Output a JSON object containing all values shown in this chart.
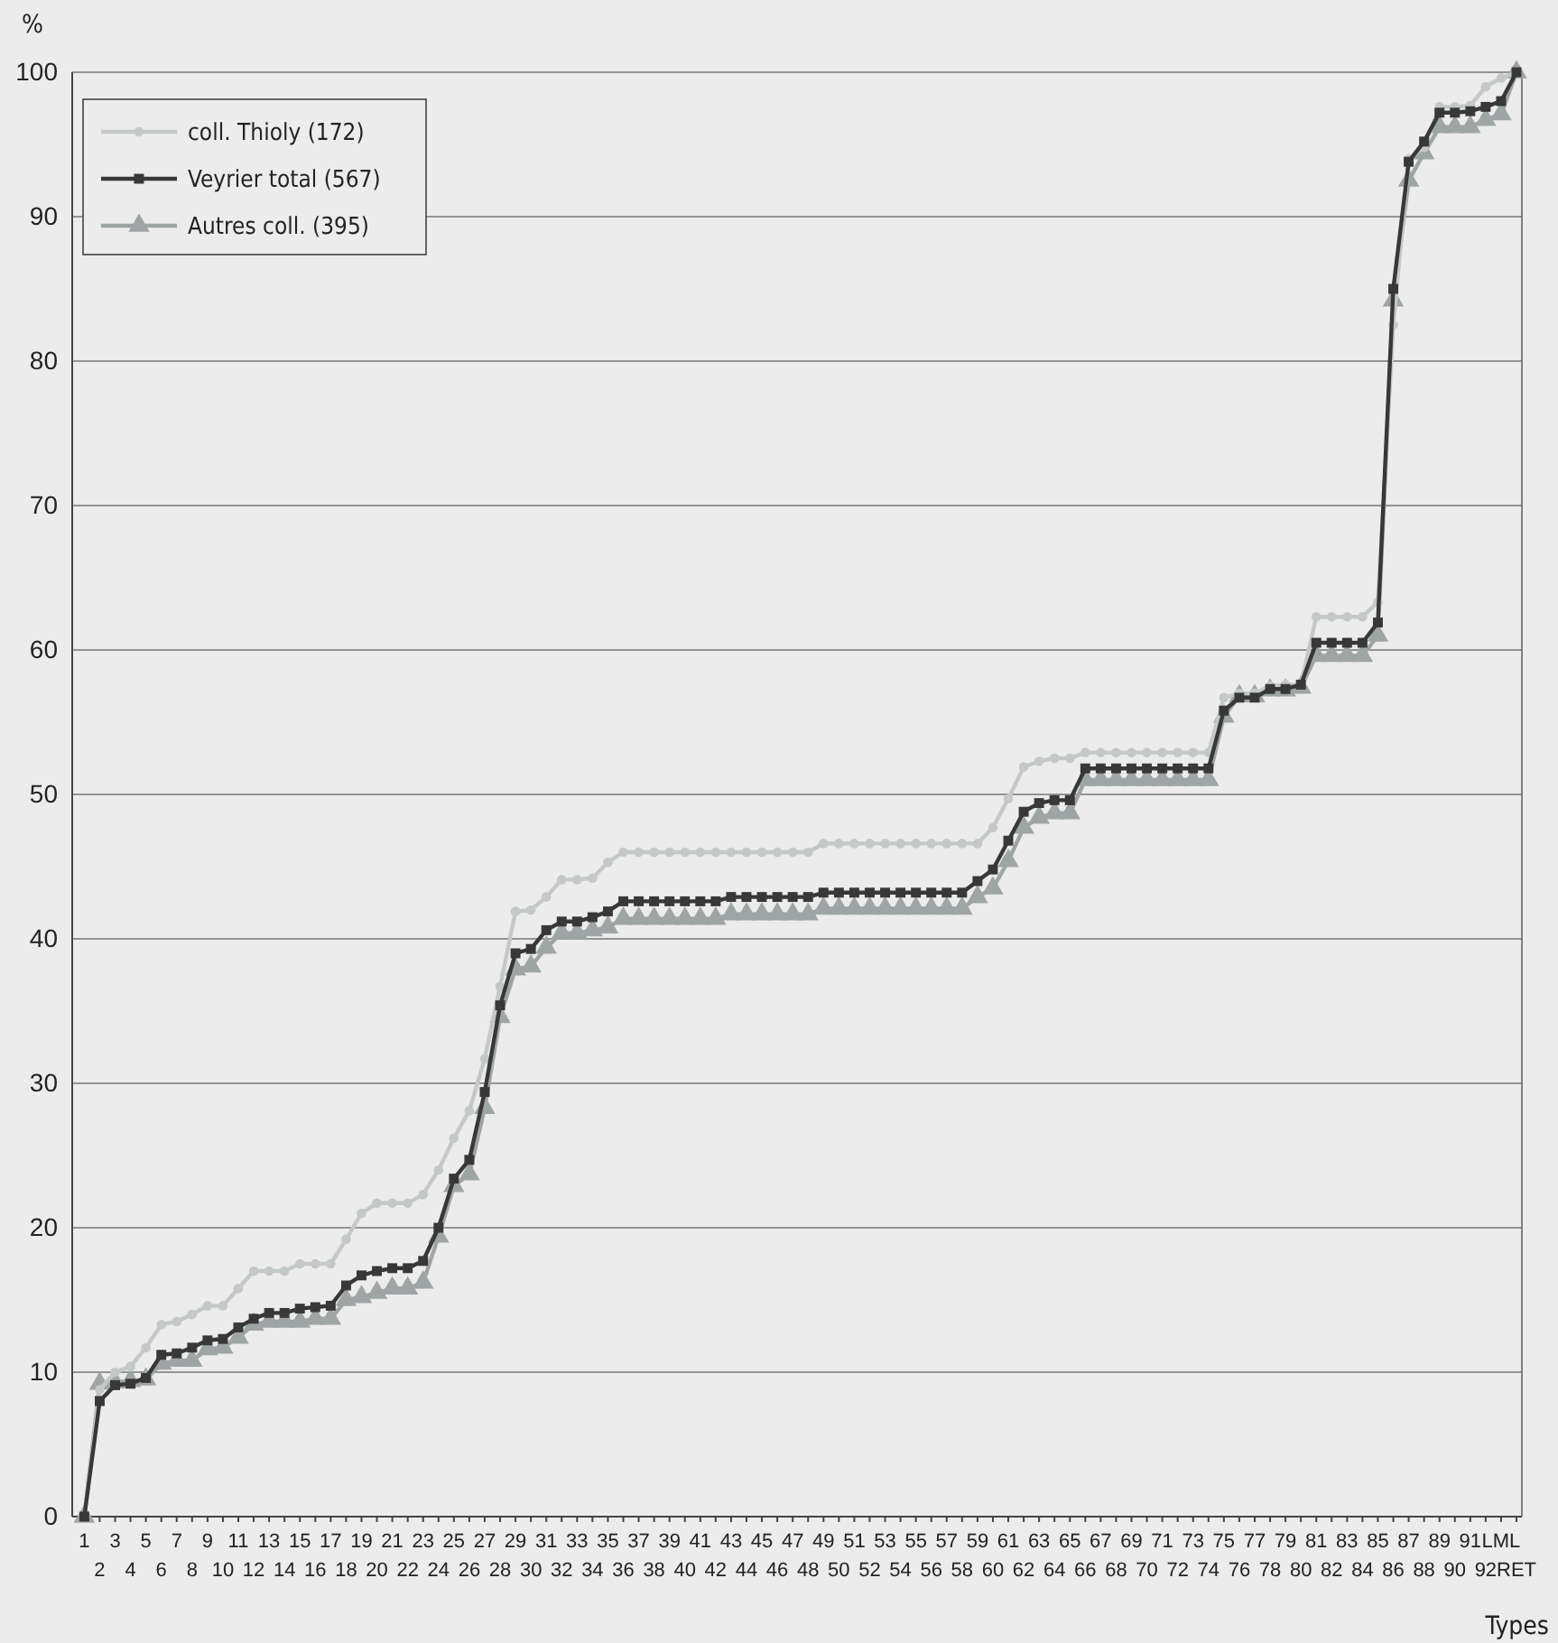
{
  "chart_data": {
    "type": "line",
    "categories": [
      "1",
      "2",
      "3",
      "4",
      "5",
      "6",
      "7",
      "8",
      "9",
      "10",
      "11",
      "12",
      "13",
      "14",
      "15",
      "16",
      "17",
      "18",
      "19",
      "20",
      "21",
      "22",
      "23",
      "24",
      "25",
      "26",
      "27",
      "28",
      "29",
      "30",
      "31",
      "32",
      "33",
      "34",
      "35",
      "36",
      "37",
      "38",
      "39",
      "40",
      "41",
      "42",
      "43",
      "44",
      "45",
      "46",
      "47",
      "48",
      "49",
      "50",
      "51",
      "52",
      "53",
      "54",
      "55",
      "56",
      "57",
      "58",
      "59",
      "60",
      "61",
      "62",
      "63",
      "64",
      "65",
      "66",
      "67",
      "68",
      "69",
      "70",
      "71",
      "72",
      "73",
      "74",
      "75",
      "76",
      "77",
      "78",
      "79",
      "80",
      "81",
      "82",
      "83",
      "84",
      "85",
      "86",
      "87",
      "88",
      "89",
      "90",
      "91",
      "92",
      "LML",
      "RET"
    ],
    "xlabel": "Types",
    "ylabel": "%",
    "ylim": [
      0,
      100
    ],
    "yticks": [
      0,
      10,
      20,
      30,
      40,
      50,
      60,
      70,
      80,
      90,
      100
    ],
    "grid": "y",
    "legend": "top left",
    "line_style": "solid",
    "series": [
      {
        "name": "coll. Thioly (172)",
        "color": "#c4c8c8",
        "marker": "circle",
        "values": [
          0,
          8.8,
          10.0,
          10.4,
          11.7,
          13.3,
          13.5,
          14.0,
          14.6,
          14.6,
          15.8,
          17.0,
          17.0,
          17.0,
          17.5,
          17.5,
          17.5,
          19.2,
          21.0,
          21.7,
          21.7,
          21.7,
          22.3,
          24.0,
          26.2,
          28.1,
          31.7,
          36.7,
          41.9,
          42.0,
          42.9,
          44.1,
          44.1,
          44.2,
          45.3,
          46.0,
          46.0,
          46.0,
          46.0,
          46.0,
          46.0,
          46.0,
          46.0,
          46.0,
          46.0,
          46.0,
          46.0,
          46.0,
          46.6,
          46.6,
          46.6,
          46.6,
          46.6,
          46.6,
          46.6,
          46.6,
          46.6,
          46.6,
          46.6,
          47.7,
          49.7,
          51.9,
          52.3,
          52.5,
          52.5,
          52.9,
          52.9,
          52.9,
          52.9,
          52.9,
          52.9,
          52.9,
          52.9,
          52.9,
          56.7,
          57.0,
          57.0,
          57.5,
          57.6,
          57.6,
          62.3,
          62.3,
          62.3,
          62.3,
          63.3,
          82.5,
          94.0,
          94.8,
          97.6,
          97.6,
          97.7,
          99.0,
          99.6,
          100
        ]
      },
      {
        "name": "Veyrier total (567)",
        "color": "#383838",
        "marker": "square",
        "values": [
          0,
          8.0,
          9.1,
          9.2,
          9.6,
          11.2,
          11.3,
          11.7,
          12.2,
          12.3,
          13.1,
          13.7,
          14.1,
          14.1,
          14.4,
          14.5,
          14.6,
          16.0,
          16.7,
          17.0,
          17.2,
          17.2,
          17.7,
          20.0,
          23.4,
          24.7,
          29.4,
          35.4,
          39.0,
          39.3,
          40.6,
          41.2,
          41.2,
          41.5,
          41.9,
          42.6,
          42.6,
          42.6,
          42.6,
          42.6,
          42.6,
          42.6,
          42.9,
          42.9,
          42.9,
          42.9,
          42.9,
          42.9,
          43.2,
          43.2,
          43.2,
          43.2,
          43.2,
          43.2,
          43.2,
          43.2,
          43.2,
          43.2,
          44.0,
          44.8,
          46.8,
          48.8,
          49.4,
          49.6,
          49.6,
          51.8,
          51.8,
          51.8,
          51.8,
          51.8,
          51.8,
          51.8,
          51.8,
          51.8,
          55.8,
          56.7,
          56.7,
          57.3,
          57.3,
          57.6,
          60.5,
          60.5,
          60.5,
          60.5,
          61.9,
          85.0,
          93.8,
          95.2,
          97.2,
          97.2,
          97.3,
          97.6,
          98.0,
          100
        ]
      },
      {
        "name": "Autres coll. (395)",
        "color": "#9fa4a4",
        "marker": "triangle",
        "values": [
          0,
          9.2,
          9.3,
          9.4,
          9.5,
          10.6,
          10.8,
          10.8,
          11.6,
          11.7,
          12.4,
          13.3,
          13.5,
          13.5,
          13.5,
          13.7,
          13.7,
          15.0,
          15.2,
          15.5,
          15.8,
          15.8,
          16.2,
          19.4,
          22.9,
          23.7,
          28.3,
          34.6,
          37.9,
          38.1,
          39.4,
          40.4,
          40.4,
          40.6,
          40.8,
          41.4,
          41.4,
          41.4,
          41.4,
          41.4,
          41.4,
          41.4,
          41.7,
          41.7,
          41.7,
          41.7,
          41.7,
          41.7,
          42.1,
          42.1,
          42.1,
          42.1,
          42.1,
          42.1,
          42.1,
          42.1,
          42.1,
          42.1,
          42.9,
          43.5,
          45.4,
          47.7,
          48.4,
          48.7,
          48.7,
          51.0,
          51.0,
          51.0,
          51.0,
          51.0,
          51.0,
          51.0,
          51.0,
          51.0,
          55.4,
          56.8,
          56.8,
          57.2,
          57.2,
          57.4,
          59.6,
          59.6,
          59.6,
          59.6,
          61.0,
          84.2,
          92.5,
          94.4,
          96.2,
          96.2,
          96.2,
          96.7,
          97.1,
          100
        ]
      }
    ]
  }
}
